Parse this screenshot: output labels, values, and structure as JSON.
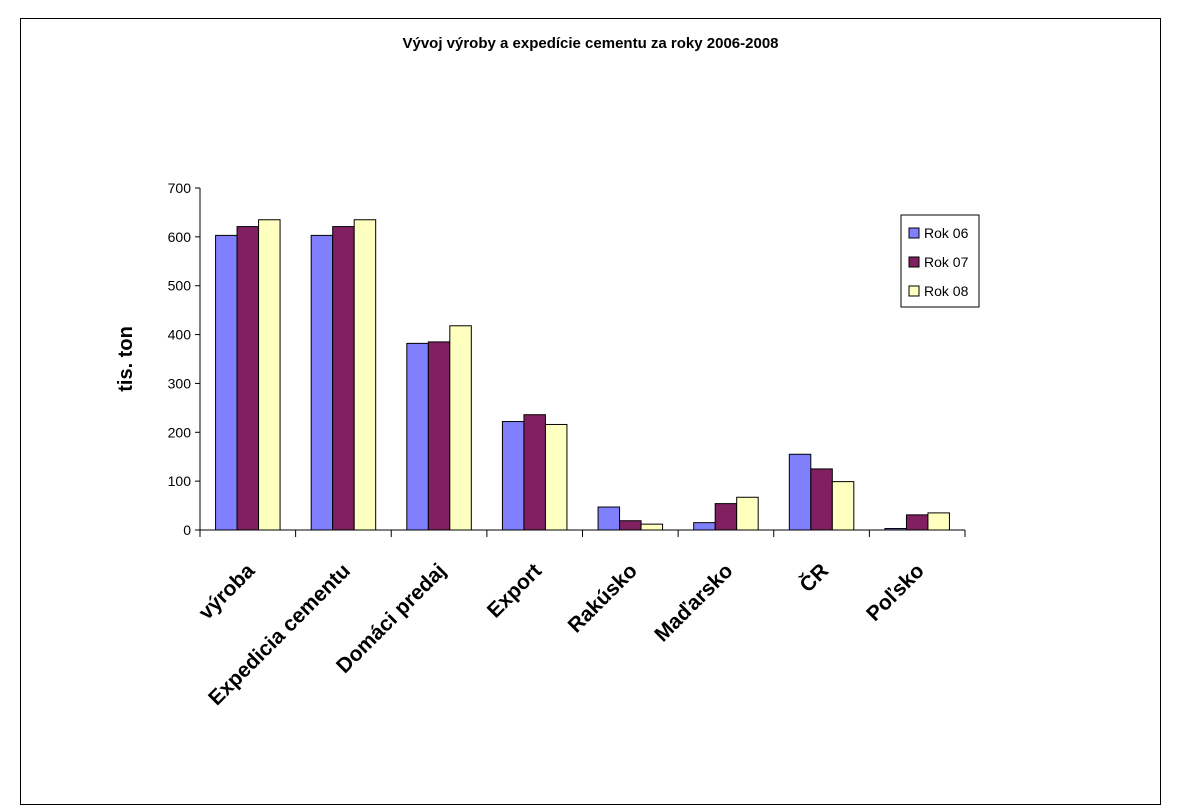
{
  "chart_data": {
    "type": "bar",
    "title": "Vývoj výroby a expedície cementu za roky 2006-2008",
    "xlabel": "",
    "ylabel": "tis. ton",
    "ylim": [
      0,
      700
    ],
    "yticks": [
      0,
      100,
      200,
      300,
      400,
      500,
      600,
      700
    ],
    "grid": false,
    "legend_position": "right",
    "categories": [
      "výroba",
      "Expedicia cementu",
      "Domáci predaj",
      "Export",
      "Rakúsko",
      "Maďarsko",
      "ČR",
      "Poľsko"
    ],
    "series": [
      {
        "name": "Rok 06",
        "color": "#8080ff",
        "values": [
          603,
          603,
          382,
          222,
          47,
          15,
          155,
          3
        ]
      },
      {
        "name": "Rok 07",
        "color": "#802060",
        "values": [
          621,
          621,
          385,
          236,
          19,
          54,
          125,
          31
        ]
      },
      {
        "name": "Rok 08",
        "color": "#ffffc0",
        "values": [
          635,
          635,
          418,
          216,
          12,
          67,
          99,
          35
        ]
      }
    ]
  }
}
